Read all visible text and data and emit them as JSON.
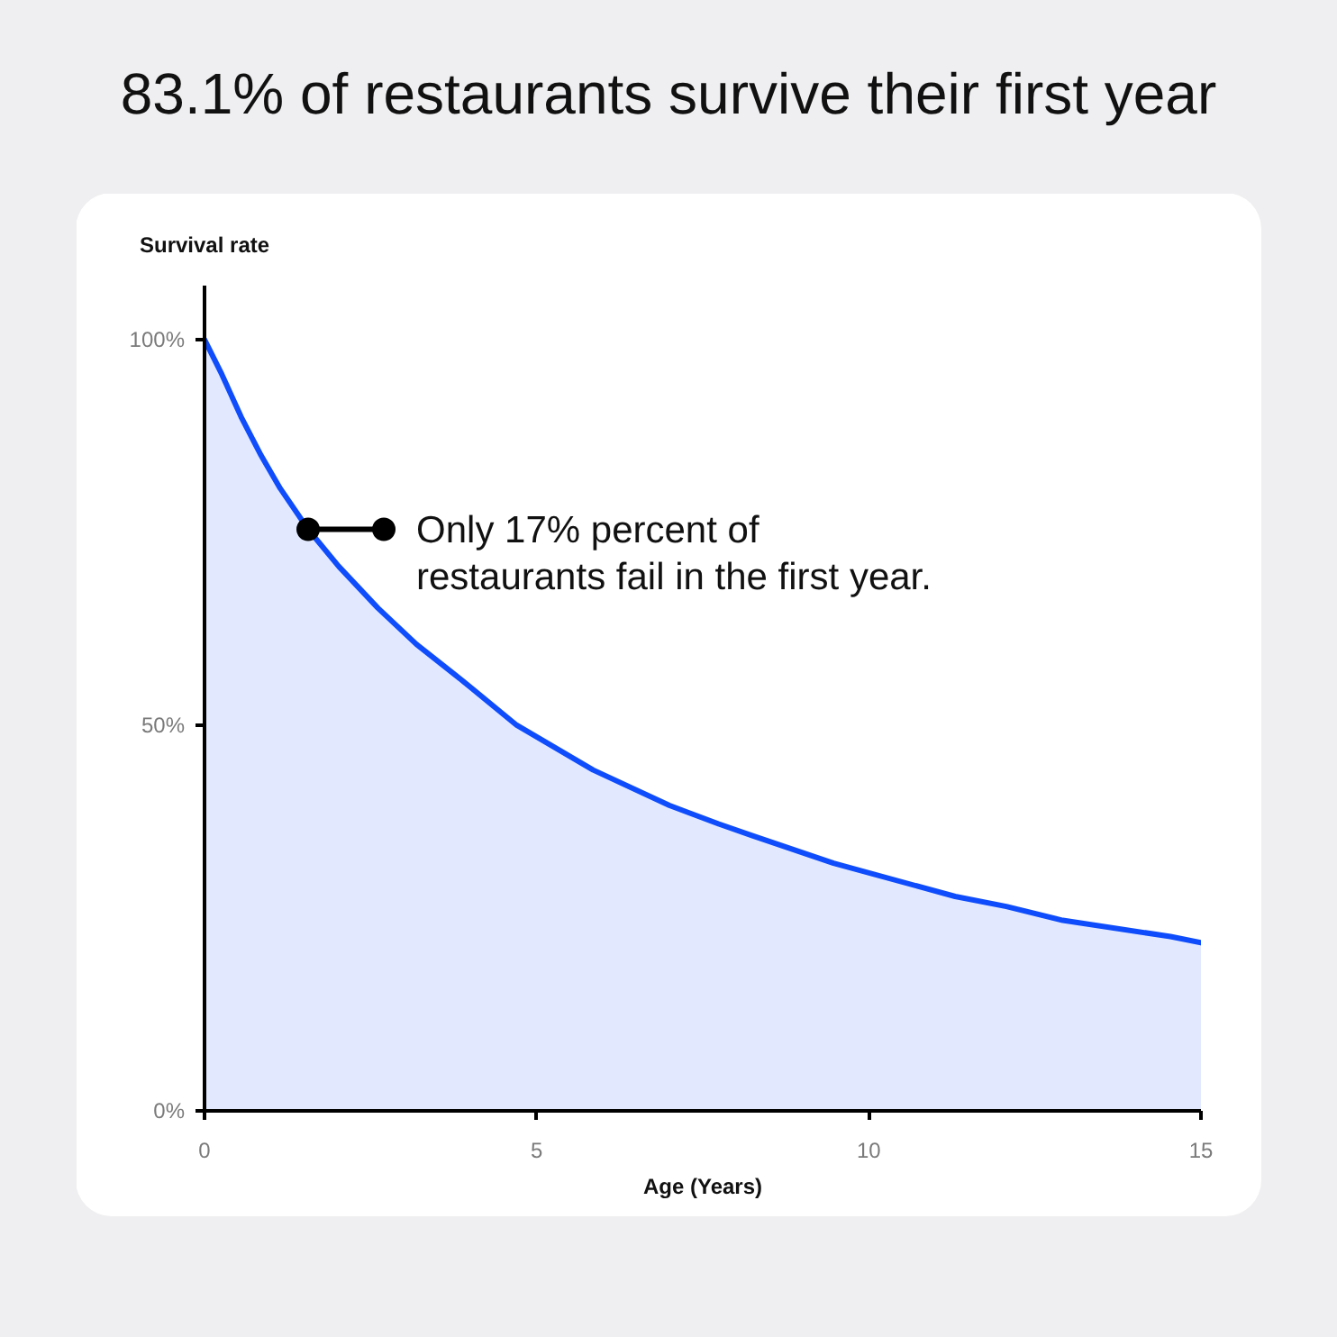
{
  "chart_data": {
    "type": "area",
    "title": "83.1% of restaurants survive their first year",
    "xlabel": "Age (Years)",
    "ylabel": "Survival rate",
    "x": [
      0,
      0.26,
      0.55,
      0.85,
      1.14,
      1.56,
      2.02,
      2.61,
      3.19,
      3.88,
      4.7,
      5.85,
      7.0,
      7.74,
      8.24,
      9.47,
      11.3,
      12.07,
      12.92,
      14.54,
      15
    ],
    "values": [
      100,
      95.5,
      90.0,
      85.0,
      80.7,
      75.4,
      70.6,
      65.2,
      60.5,
      55.8,
      50.0,
      44.2,
      39.6,
      37.2,
      35.7,
      32.1,
      27.8,
      26.5,
      24.7,
      22.6,
      21.8
    ],
    "color": "#0f4dfc",
    "xlim": [
      0,
      15
    ],
    "xticks": [
      0,
      5,
      10,
      15
    ],
    "ylim": [
      0,
      107
    ],
    "yticks": [
      {
        "value": 0,
        "label": "0%"
      },
      {
        "value": 50,
        "label": "50%"
      },
      {
        "value": 100,
        "label": "100%"
      }
    ],
    "annotations": [
      {
        "text": "Only 17% percent of\nrestaurants fail in the first year.",
        "x": 1.56,
        "y": 75.4
      }
    ]
  }
}
